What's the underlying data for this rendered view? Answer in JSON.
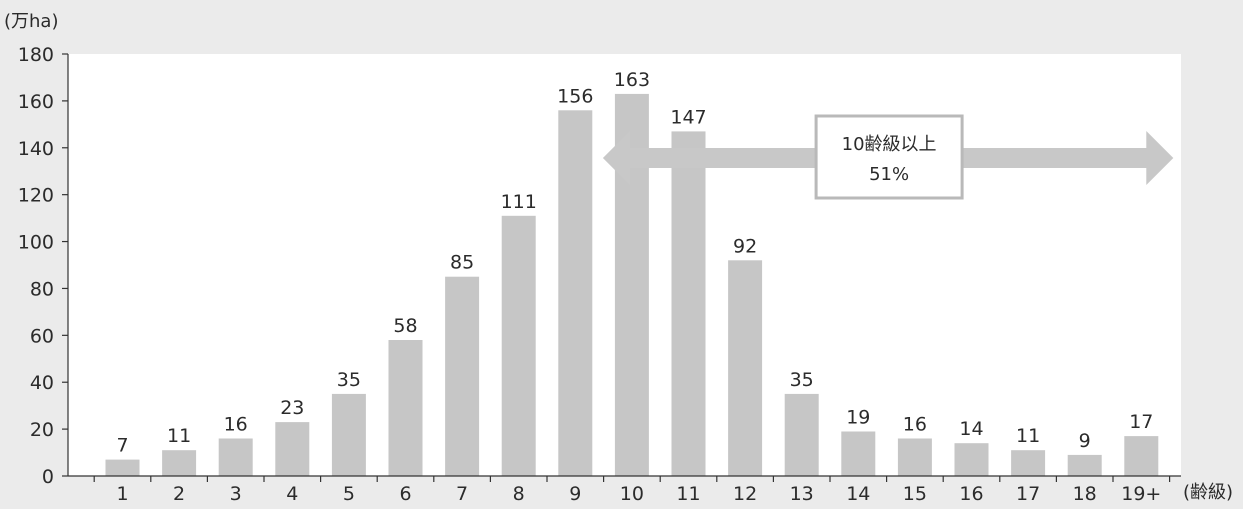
{
  "chart_data": {
    "type": "bar",
    "title": "",
    "ylabel": "(万ha)",
    "xlabel": "(齢級)",
    "ylim": [
      0,
      180
    ],
    "yticks": [
      0,
      20,
      40,
      60,
      80,
      100,
      120,
      140,
      160,
      180
    ],
    "categories": [
      "1",
      "2",
      "3",
      "4",
      "5",
      "6",
      "7",
      "8",
      "9",
      "10",
      "11",
      "12",
      "13",
      "14",
      "15",
      "16",
      "17",
      "18",
      "19+"
    ],
    "values": [
      7,
      11,
      16,
      23,
      35,
      58,
      85,
      111,
      156,
      163,
      147,
      92,
      35,
      19,
      16,
      14,
      11,
      9,
      17
    ],
    "bar_color": "#c6c6c6",
    "plot_background": "#ffffff",
    "grid": false,
    "legend": "none",
    "annotation": {
      "line1": "10齢級以上",
      "line2": "51%",
      "span_from_category": "10",
      "span_to_category": "19+",
      "arrow_color": "#c8c8c8"
    }
  }
}
